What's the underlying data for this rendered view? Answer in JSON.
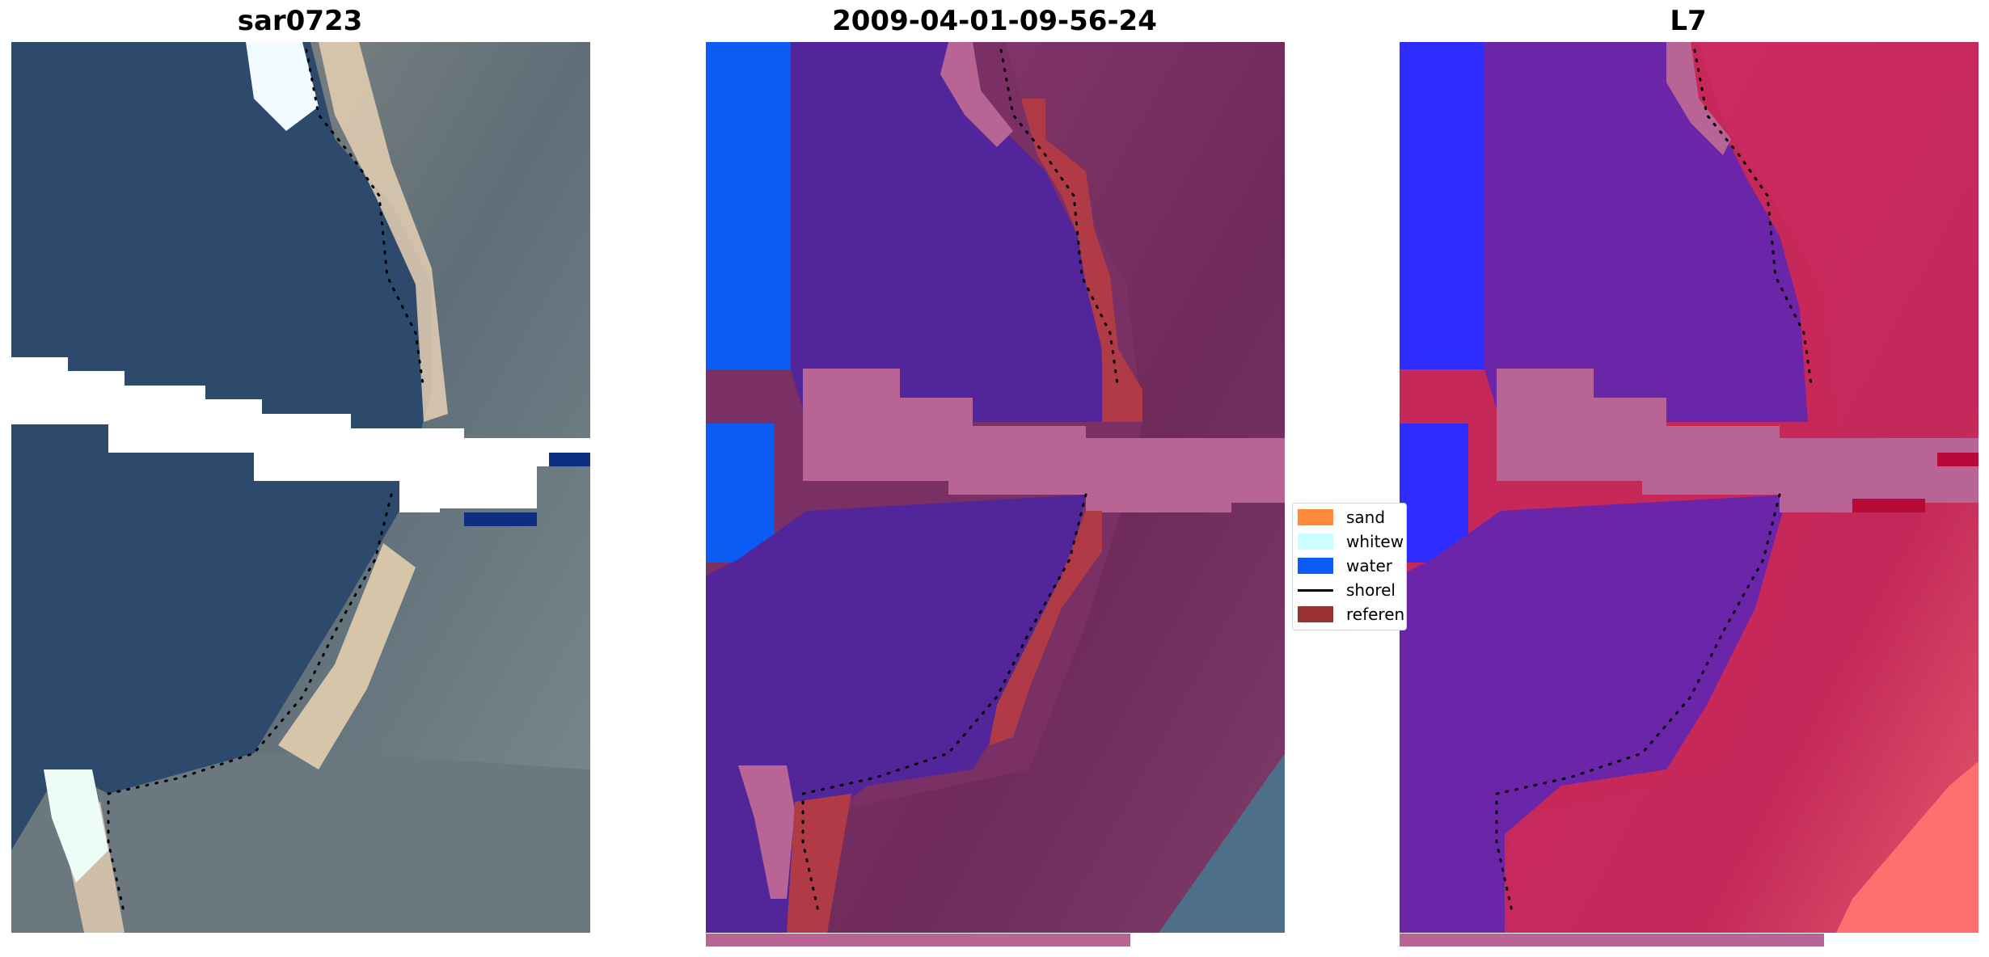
{
  "panels": [
    {
      "title": "sar0723"
    },
    {
      "title": "2009-04-01-09-56-24"
    },
    {
      "title": "L7"
    }
  ],
  "legend": {
    "items": [
      {
        "label": "sand",
        "color": "#ff8a3d",
        "kind": "patch"
      },
      {
        "label": "whitew",
        "color": "#ccffff",
        "kind": "patch"
      },
      {
        "label": "water",
        "color": "#0a5cf5",
        "kind": "patch"
      },
      {
        "label": "shorel",
        "color": "#000000",
        "kind": "line"
      },
      {
        "label": "referen",
        "color": "#9b3232",
        "kind": "patch"
      }
    ]
  },
  "colors": {
    "rgb_water": "#2d4a6c",
    "rgb_land": "#6f7a82",
    "rgb_beach": "#e9d3b5",
    "class_water": "#0a5cf5",
    "class_purple": "#52259a",
    "class_land": "#7a3064",
    "class_pink": "#b86596",
    "class_reference": "#b03b47",
    "mndwi_blue": "#2f2cff",
    "mndwi_purple": "#6b25a8",
    "mndwi_red": "#c6285a",
    "mndwi_salmon": "#ff6f6f"
  }
}
